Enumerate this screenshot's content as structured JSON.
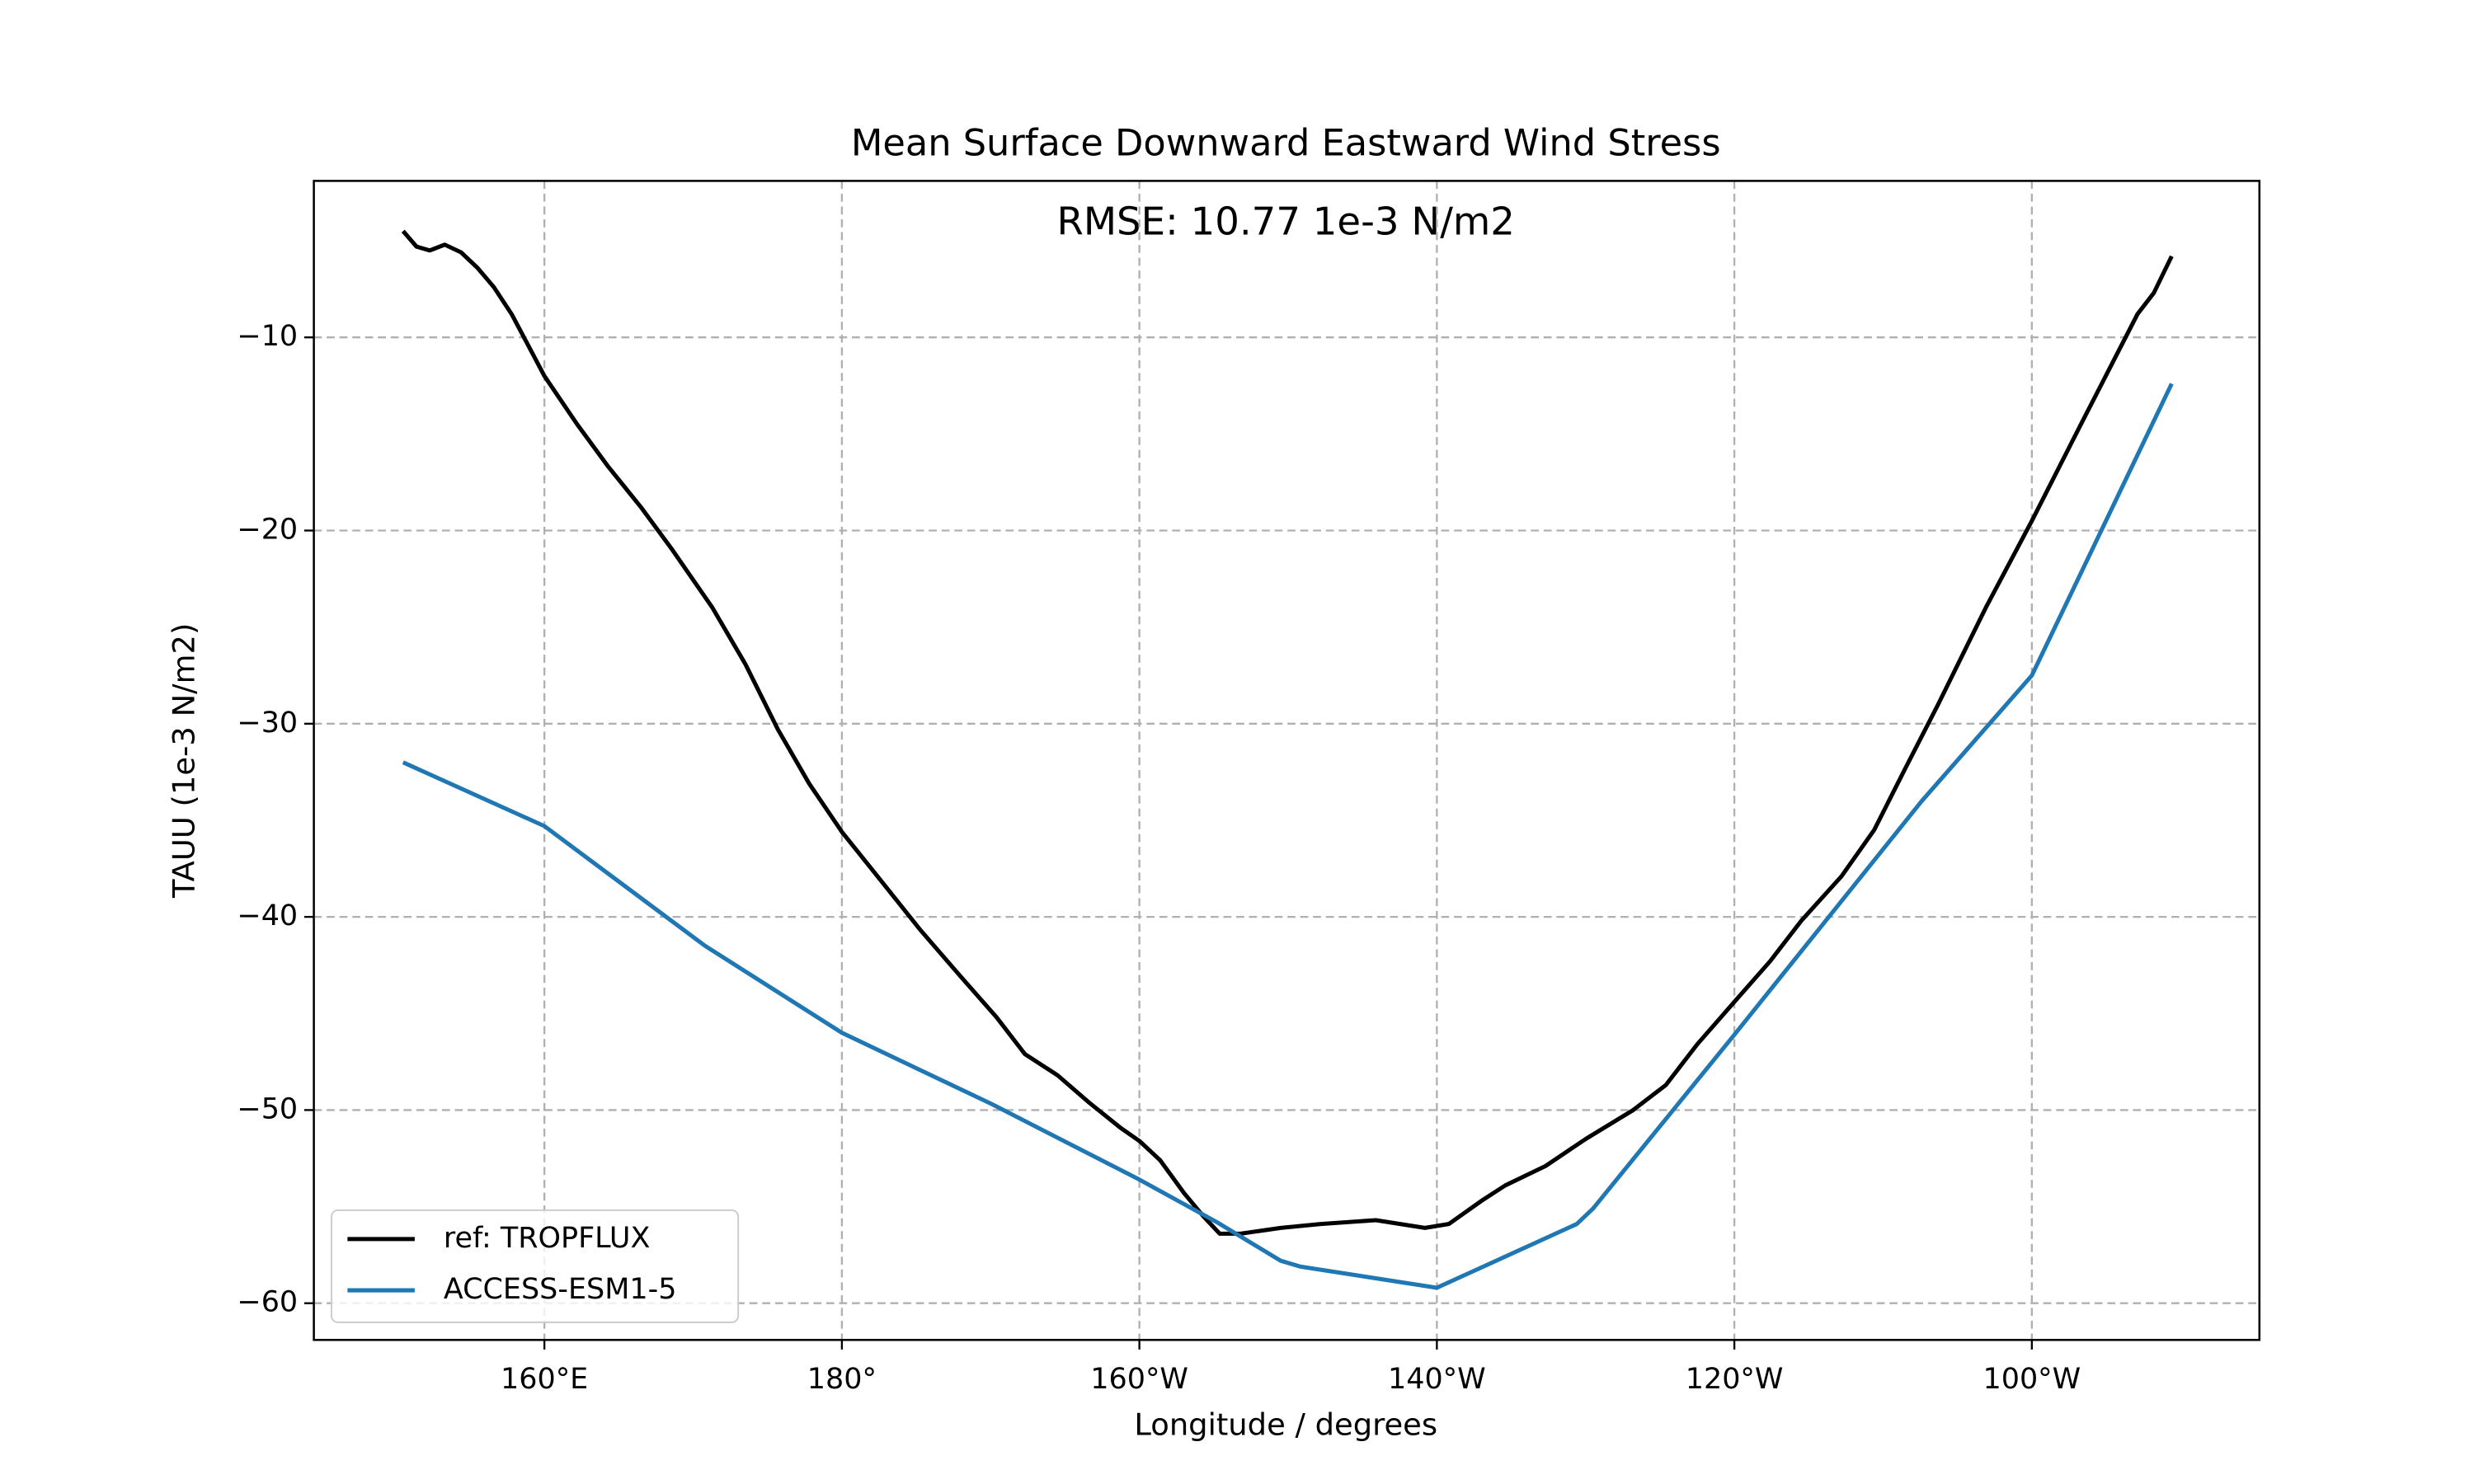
{
  "chart_data": {
    "type": "line",
    "title": "Mean Surface Downward Eastward Wind Stress",
    "annotation": "RMSE: 10.77 1e-3 N/m2",
    "xlabel": "Longitude / degrees",
    "ylabel": "TAUU (1e-3 N/m2)",
    "xlim": [
      144.5,
      275.3
    ],
    "ylim": [
      -61.9,
      -1.9
    ],
    "xticks": [
      {
        "value": 160,
        "label": "160°E"
      },
      {
        "value": 180,
        "label": "180°"
      },
      {
        "value": 200,
        "label": "160°W"
      },
      {
        "value": 220,
        "label": "140°W"
      },
      {
        "value": 240,
        "label": "120°W"
      },
      {
        "value": 260,
        "label": "100°W"
      }
    ],
    "yticks": [
      {
        "value": -10,
        "label": "−10"
      },
      {
        "value": -20,
        "label": "−20"
      },
      {
        "value": -30,
        "label": "−30"
      },
      {
        "value": -40,
        "label": "−40"
      },
      {
        "value": -50,
        "label": "−50"
      },
      {
        "value": -60,
        "label": "−60"
      }
    ],
    "grid": true,
    "legend": "lower left",
    "series": [
      {
        "name": "ref: TROPFLUX",
        "color": "#000000",
        "x": [
          150.5,
          151.4,
          152.3,
          153.3,
          154.4,
          155.5,
          156.6,
          157.8,
          160,
          162.2,
          164.3,
          166.5,
          168.6,
          171.3,
          173.5,
          175.7,
          177.8,
          180,
          182.6,
          185.3,
          188,
          190.4,
          192.3,
          194.5,
          196.6,
          198.7,
          200,
          201.4,
          203,
          204.3,
          205.4,
          206.8,
          209.5,
          212.2,
          215.9,
          219.2,
          220.8,
          223,
          224.6,
          227.3,
          230,
          233.2,
          235.4,
          237.5,
          240,
          242.4,
          244.5,
          247.2,
          249.4,
          251.5,
          253.7,
          256.9,
          260,
          263.3,
          265.5,
          267.1,
          268.2,
          269.4
        ],
        "values": [
          -4.5,
          -5.3,
          -5.5,
          -5.2,
          -5.6,
          -6.4,
          -7.4,
          -8.8,
          -12.0,
          -14.5,
          -16.7,
          -18.8,
          -21.0,
          -24.0,
          -26.9,
          -30.3,
          -33.1,
          -35.6,
          -38.1,
          -40.7,
          -43.1,
          -45.2,
          -47.1,
          -48.2,
          -49.6,
          -50.9,
          -51.6,
          -52.6,
          -54.3,
          -55.5,
          -56.4,
          -56.4,
          -56.1,
          -55.9,
          -55.7,
          -56.1,
          -55.9,
          -54.7,
          -53.9,
          -52.9,
          -51.5,
          -50.0,
          -48.7,
          -46.6,
          -44.4,
          -42.3,
          -40.2,
          -37.9,
          -35.5,
          -32.3,
          -29.0,
          -24.0,
          -19.5,
          -14.5,
          -11.2,
          -8.8,
          -7.7,
          -5.8
        ]
      },
      {
        "name": "ACCESS-ESM1-5",
        "color": "#1f77b4",
        "x": [
          150.5,
          160,
          170.8,
          180,
          190.1,
          200,
          205.2,
          209.5,
          210.8,
          220,
          229.4,
          230.5,
          240,
          252.6,
          260,
          269.4
        ],
        "values": [
          -32.0,
          -35.3,
          -41.5,
          -46.0,
          -49.7,
          -53.6,
          -55.8,
          -57.8,
          -58.1,
          -59.2,
          -55.9,
          -55.1,
          -46.1,
          -34.0,
          -27.5,
          -12.4
        ]
      }
    ]
  }
}
